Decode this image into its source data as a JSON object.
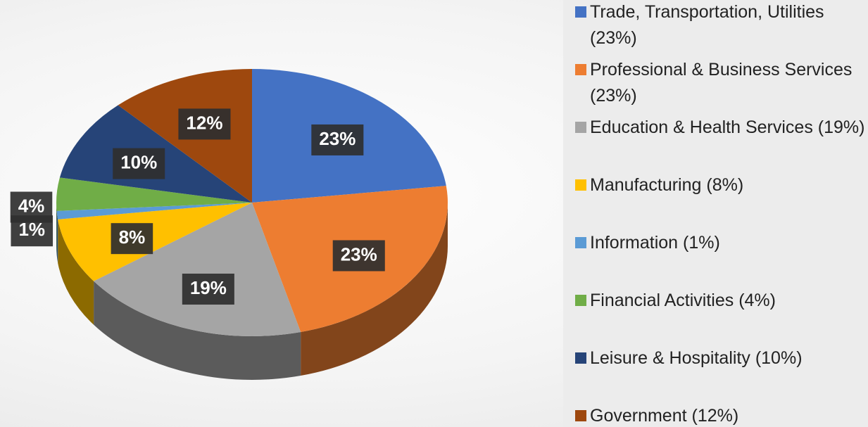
{
  "chart_data": {
    "type": "pie",
    "categories": [
      "Trade, Transportation, Utilities (23%)",
      "Professional & Business Services (23%)",
      "Education & Health Services (19%)",
      "Manufacturing (8%)",
      "Information (1%)",
      "Financial Activities (4%)",
      "Leisure & Hospitality (10%)",
      "Government (12%)"
    ],
    "values": [
      23,
      23,
      19,
      8,
      1,
      4,
      10,
      12
    ],
    "value_labels": [
      "23%",
      "23%",
      "19%",
      "8%",
      "1%",
      "4%",
      "10%",
      "12%"
    ],
    "colors": [
      "#4472c4",
      "#ed7d31",
      "#a5a5a5",
      "#ffc000",
      "#5b9bd5",
      "#70ad47",
      "#264478",
      "#9e480e"
    ],
    "legend": "right"
  }
}
